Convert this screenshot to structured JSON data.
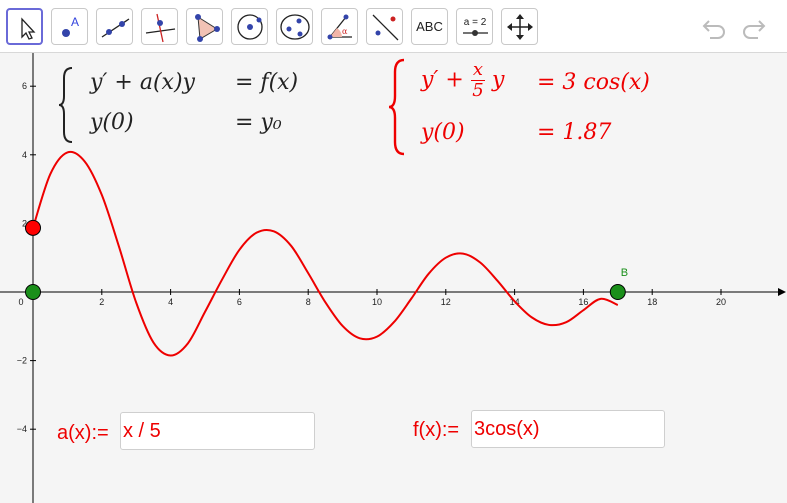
{
  "toolbar": {
    "tools": [
      {
        "name": "move-tool",
        "label": ""
      },
      {
        "name": "point-tool",
        "label": "A"
      },
      {
        "name": "line-tool",
        "label": ""
      },
      {
        "name": "perpendicular-tool",
        "label": ""
      },
      {
        "name": "polygon-tool",
        "label": ""
      },
      {
        "name": "circle-center-point-tool",
        "label": ""
      },
      {
        "name": "conic-tool",
        "label": ""
      },
      {
        "name": "angle-tool",
        "label": ""
      },
      {
        "name": "reflect-tool",
        "label": ""
      },
      {
        "name": "text-tool",
        "label": "ABC"
      },
      {
        "name": "slider-tool",
        "label": "a = 2"
      },
      {
        "name": "move-view-tool",
        "label": ""
      }
    ],
    "selected_tool": "move-tool",
    "icons": {
      "undo": "undo-icon",
      "redo": "redo-icon"
    }
  },
  "general_system": {
    "line1_lhs": "y′ + a(x)y",
    "line1_rhs": "= f(x)",
    "line2_lhs": "y(0)",
    "line2_rhs": "= y₀"
  },
  "specific_system": {
    "line1_prefix": "y′ +",
    "frac_num": "x",
    "frac_den": "5",
    "line1_suffix": "y",
    "line1_rhs": "= 3  cos(x)",
    "line2_lhs": "y(0)",
    "line2_rhs": "= 1.87"
  },
  "inputs": {
    "a_label": "a(x):=",
    "a_value": "x / 5",
    "f_label": "f(x):=",
    "f_value": "3cos(x)"
  },
  "point_label_B": "B",
  "colors": {
    "curve": "#ee0000",
    "point_green": "#1a8f1a",
    "point_red": "#ff0000",
    "axis": "#000000"
  },
  "chart_data": {
    "type": "line",
    "x_ticks": [
      "0",
      "2",
      "4",
      "6",
      "8",
      "10",
      "12",
      "14",
      "16",
      "18",
      "20"
    ],
    "y_ticks": [
      "6",
      "4",
      "2",
      "−2",
      "−4"
    ],
    "xlim": [
      0,
      21.5
    ],
    "ylim": [
      -6,
      6.3
    ],
    "grid": false,
    "series": [
      {
        "x": [
          0,
          0.5,
          1,
          1.5,
          2,
          2.5,
          3,
          3.5,
          4,
          4.5,
          5,
          5.5,
          6,
          6.5,
          7,
          7.5,
          8,
          8.5,
          9,
          9.5,
          10,
          10.5,
          11,
          11.5,
          12,
          12.5,
          13,
          13.5,
          14,
          14.5,
          15,
          15.5,
          16,
          16.5,
          17
        ],
        "y": [
          1.87,
          3.43,
          4.07,
          3.81,
          2.83,
          1.32,
          -0.31,
          -1.47,
          -1.85,
          -1.5,
          -0.58,
          0.37,
          1.23,
          1.73,
          1.77,
          1.35,
          0.55,
          -0.3,
          -0.99,
          -1.35,
          -1.3,
          -0.87,
          -0.19,
          0.53,
          1.0,
          1.12,
          0.86,
          0.33,
          -0.27,
          -0.74,
          -0.96,
          -0.88,
          -0.53,
          -0.2,
          -0.38
        ]
      }
    ],
    "points": [
      {
        "x": 0,
        "y": 1.87,
        "color": "#ff0000"
      },
      {
        "x": 0,
        "y": 0,
        "color": "#1a8f1a"
      },
      {
        "x": 17,
        "y": 0,
        "color": "#1a8f1a",
        "label": "B"
      }
    ]
  }
}
